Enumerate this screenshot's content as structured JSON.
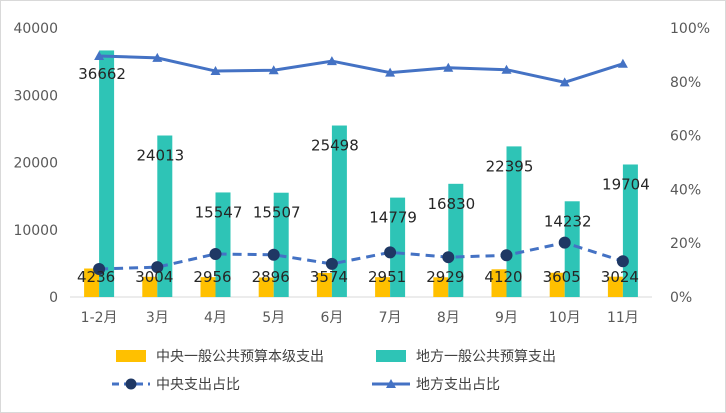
{
  "chart_data": {
    "type": "bar",
    "categories": [
      "1-2月",
      "3月",
      "4月",
      "5月",
      "6月",
      "7月",
      "8月",
      "9月",
      "10月",
      "11月"
    ],
    "series": [
      {
        "name": "中央一般公共预算本级支出",
        "kind": "bar",
        "axis": "left",
        "color": "#FFC000",
        "values": [
          4236,
          3004,
          2956,
          2896,
          3574,
          2951,
          2929,
          4120,
          3605,
          3024
        ]
      },
      {
        "name": "地方一般公共预算支出",
        "kind": "bar",
        "axis": "left",
        "color": "#2EC4B6",
        "values": [
          36662,
          24013,
          15547,
          15507,
          25498,
          14779,
          16830,
          22395,
          14232,
          19704
        ]
      },
      {
        "name": "中央支出占比",
        "kind": "line",
        "style": "dashed",
        "marker": "circle",
        "axis": "right",
        "color": "#4472C4",
        "values": [
          10.4,
          11.1,
          16.0,
          15.7,
          12.3,
          16.6,
          14.8,
          15.5,
          20.2,
          13.3
        ]
      },
      {
        "name": "地方支出占比",
        "kind": "line",
        "style": "solid",
        "marker": "triangle",
        "axis": "right",
        "color": "#4472C4",
        "values": [
          89.6,
          88.9,
          84.0,
          84.3,
          87.7,
          83.4,
          85.2,
          84.5,
          79.8,
          86.7
        ]
      }
    ],
    "left_axis": {
      "min": 0,
      "max": 40000,
      "ticks": [
        "0",
        "10000",
        "20000",
        "30000",
        "40000"
      ]
    },
    "right_axis": {
      "min": 0,
      "max": 100,
      "ticks": [
        "0%",
        "20%",
        "40%",
        "60%",
        "80%",
        "100%"
      ]
    },
    "grid": false,
    "legend_position": "bottom"
  },
  "colors": {
    "central_bar": "#FFC000",
    "local_bar": "#2EC4B6",
    "ratio_line": "#4472C4",
    "axis": "#d9d9d9"
  }
}
